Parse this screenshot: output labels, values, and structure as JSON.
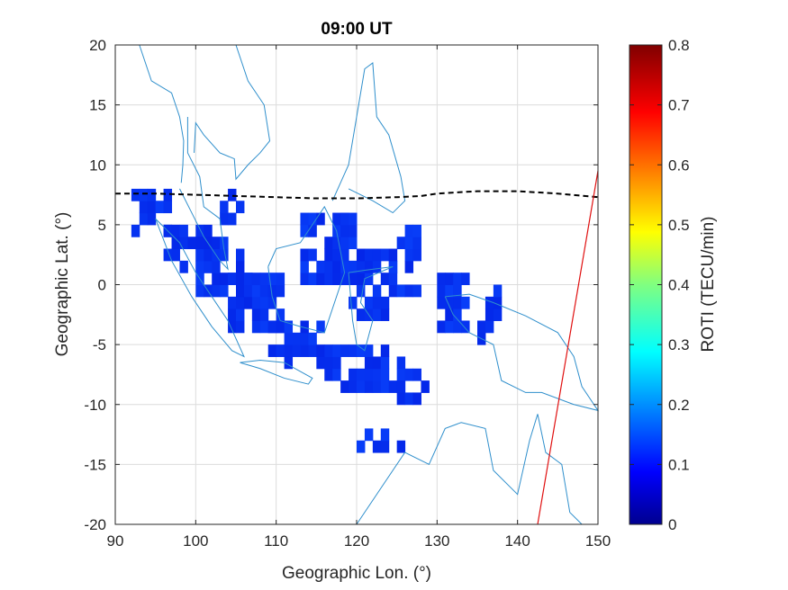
{
  "chart_data": {
    "type": "heatmap",
    "title": "09:00 UT",
    "xlabel": "Geographic Lon. (°)",
    "ylabel": "Geographic Lat. (°)",
    "xlim": [
      90,
      150
    ],
    "ylim": [
      -20,
      20
    ],
    "xticks": [
      "90",
      "100",
      "110",
      "120",
      "130",
      "140",
      "150"
    ],
    "yticks": [
      "20",
      "15",
      "10",
      "5",
      "0",
      "-5",
      "-10",
      "-15",
      "-20"
    ],
    "grid": true,
    "colorbar": {
      "label": "ROTI (TECU/min)",
      "range": [
        0,
        0.8
      ],
      "ticks": [
        "0",
        "0.1",
        "0.2",
        "0.3",
        "0.4",
        "0.5",
        "0.6",
        "0.7",
        "0.8"
      ],
      "colormap": "jet"
    },
    "roti_cells_note_value_range": [
      0.05,
      0.14
    ],
    "magnetic_equator": [
      [
        90,
        7.6
      ],
      [
        95,
        7.6
      ],
      [
        100,
        7.5
      ],
      [
        105,
        7.4
      ],
      [
        110,
        7.3
      ],
      [
        115,
        7.2
      ],
      [
        120,
        7.2
      ],
      [
        125,
        7.3
      ],
      [
        128,
        7.4
      ],
      [
        130,
        7.6
      ],
      [
        135,
        7.8
      ],
      [
        140,
        7.8
      ],
      [
        145,
        7.6
      ],
      [
        150,
        7.3
      ]
    ],
    "red_line": [
      [
        142.5,
        -20
      ],
      [
        150,
        9.5
      ]
    ],
    "colors": {
      "coastline": "#2f8fcc",
      "equator": "#000000",
      "red_line": "#e01010",
      "cell": "#0b1ff0"
    }
  }
}
